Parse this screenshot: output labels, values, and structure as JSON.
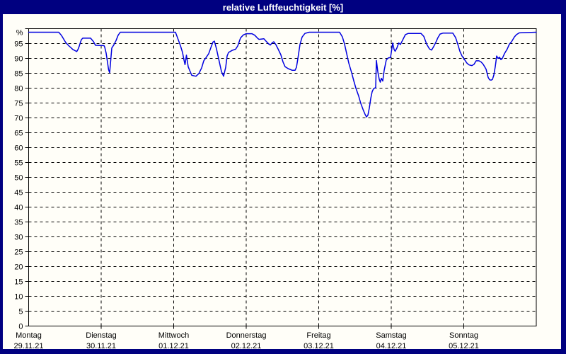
{
  "window": {
    "title": "relative Luftfeuchtigkeit [%]"
  },
  "colors": {
    "frame_background": "#000080",
    "panel_background": "#fffef8",
    "title_text": "#ffffff",
    "line": "#0000e0",
    "grid": "#000000",
    "label_text": "#000000"
  },
  "chart_data": {
    "type": "line",
    "title": "relative Luftfeuchtigkeit [%]",
    "unit_label": "%",
    "ylim": [
      0,
      100
    ],
    "y_tick_step": 5,
    "y_ticks": [
      0,
      5,
      10,
      15,
      20,
      25,
      30,
      35,
      40,
      45,
      50,
      55,
      60,
      65,
      70,
      75,
      80,
      85,
      90,
      95
    ],
    "xlim_days": [
      0,
      7
    ],
    "grid": "dashed",
    "legend": "none",
    "days": [
      {
        "name": "Montag",
        "date": "29.11.21"
      },
      {
        "name": "Dienstag",
        "date": "30.11.21"
      },
      {
        "name": "Mittwoch",
        "date": "01.12.21"
      },
      {
        "name": "Donnerstag",
        "date": "02.12.21"
      },
      {
        "name": "Freitag",
        "date": "03.12.21"
      },
      {
        "name": "Samstag",
        "date": "04.12.21"
      },
      {
        "name": "Sonntag",
        "date": "05.12.21"
      }
    ],
    "series": [
      {
        "name": "relative Luftfeuchtigkeit [%]",
        "color": "#0000e0",
        "points": [
          [
            0.0,
            98.8
          ],
          [
            0.415,
            98.8
          ],
          [
            0.454,
            97.7
          ],
          [
            0.483,
            96.5
          ],
          [
            0.512,
            95.3
          ],
          [
            0.551,
            94.3
          ],
          [
            0.58,
            93.7
          ],
          [
            0.61,
            93.0
          ],
          [
            0.649,
            92.5
          ],
          [
            0.663,
            92.3
          ],
          [
            0.678,
            92.9
          ],
          [
            0.698,
            94.1
          ],
          [
            0.712,
            95.3
          ],
          [
            0.727,
            96.3
          ],
          [
            0.746,
            96.8
          ],
          [
            0.854,
            96.8
          ],
          [
            0.893,
            95.7
          ],
          [
            0.922,
            94.4
          ],
          [
            1.039,
            94.3
          ],
          [
            1.049,
            93.8
          ],
          [
            1.068,
            91.8
          ],
          [
            1.088,
            88.6
          ],
          [
            1.102,
            86.2
          ],
          [
            1.117,
            85.2
          ],
          [
            1.146,
            93.5
          ],
          [
            1.176,
            94.6
          ],
          [
            1.205,
            96.0
          ],
          [
            1.234,
            97.8
          ],
          [
            1.263,
            98.8
          ],
          [
            2.024,
            98.8
          ],
          [
            2.054,
            96.9
          ],
          [
            2.093,
            94.3
          ],
          [
            2.122,
            92.0
          ],
          [
            2.141,
            89.5
          ],
          [
            2.156,
            87.9
          ],
          [
            2.176,
            91.1
          ],
          [
            2.2,
            87.2
          ],
          [
            2.249,
            84.3
          ],
          [
            2.307,
            84.0
          ],
          [
            2.346,
            84.9
          ],
          [
            2.385,
            86.8
          ],
          [
            2.415,
            89.2
          ],
          [
            2.444,
            90.2
          ],
          [
            2.483,
            91.6
          ],
          [
            2.512,
            93.6
          ],
          [
            2.541,
            95.5
          ],
          [
            2.561,
            95.8
          ],
          [
            2.59,
            93.2
          ],
          [
            2.62,
            89.8
          ],
          [
            2.659,
            85.6
          ],
          [
            2.688,
            84.0
          ],
          [
            2.717,
            87.0
          ],
          [
            2.737,
            90.8
          ],
          [
            2.756,
            92.0
          ],
          [
            2.805,
            92.7
          ],
          [
            2.854,
            93.1
          ],
          [
            2.883,
            94.2
          ],
          [
            2.922,
            96.9
          ],
          [
            2.961,
            97.9
          ],
          [
            3.0,
            98.3
          ],
          [
            3.078,
            98.3
          ],
          [
            3.117,
            97.8
          ],
          [
            3.156,
            96.8
          ],
          [
            3.176,
            96.4
          ],
          [
            3.244,
            96.6
          ],
          [
            3.273,
            95.8
          ],
          [
            3.312,
            94.8
          ],
          [
            3.332,
            94.5
          ],
          [
            3.361,
            95.3
          ],
          [
            3.38,
            95.6
          ],
          [
            3.41,
            94.6
          ],
          [
            3.439,
            93.2
          ],
          [
            3.478,
            91.2
          ],
          [
            3.507,
            88.8
          ],
          [
            3.537,
            87.2
          ],
          [
            3.576,
            86.6
          ],
          [
            3.605,
            86.3
          ],
          [
            3.634,
            86.0
          ],
          [
            3.673,
            86.0
          ],
          [
            3.693,
            87.0
          ],
          [
            3.712,
            89.9
          ],
          [
            3.741,
            94.7
          ],
          [
            3.771,
            97.2
          ],
          [
            3.81,
            98.4
          ],
          [
            3.868,
            98.8
          ],
          [
            4.288,
            98.8
          ],
          [
            4.327,
            97.2
          ],
          [
            4.356,
            94.8
          ],
          [
            4.385,
            91.6
          ],
          [
            4.415,
            88.4
          ],
          [
            4.454,
            85.2
          ],
          [
            4.483,
            82.5
          ],
          [
            4.512,
            80.0
          ],
          [
            4.551,
            77.3
          ],
          [
            4.58,
            74.9
          ],
          [
            4.61,
            72.9
          ],
          [
            4.639,
            71.2
          ],
          [
            4.659,
            70.3
          ],
          [
            4.678,
            70.9
          ],
          [
            4.698,
            73.3
          ],
          [
            4.717,
            76.5
          ],
          [
            4.737,
            78.8
          ],
          [
            4.756,
            79.8
          ],
          [
            4.785,
            80.2
          ],
          [
            4.795,
            89.3
          ],
          [
            4.815,
            85.5
          ],
          [
            4.834,
            83.0
          ],
          [
            4.849,
            82.0
          ],
          [
            4.863,
            83.3
          ],
          [
            4.883,
            82.4
          ],
          [
            4.902,
            86.0
          ],
          [
            4.932,
            89.5
          ],
          [
            4.961,
            90.2
          ],
          [
            4.99,
            90.3
          ],
          [
            5.01,
            93.5
          ],
          [
            5.02,
            95.2
          ],
          [
            5.039,
            93.0
          ],
          [
            5.054,
            92.4
          ],
          [
            5.078,
            93.5
          ],
          [
            5.102,
            95.2
          ],
          [
            5.127,
            94.7
          ],
          [
            5.166,
            96.6
          ],
          [
            5.195,
            98.0
          ],
          [
            5.234,
            98.4
          ],
          [
            5.41,
            98.4
          ],
          [
            5.449,
            97.4
          ],
          [
            5.488,
            94.8
          ],
          [
            5.527,
            93.2
          ],
          [
            5.556,
            92.8
          ],
          [
            5.585,
            94.0
          ],
          [
            5.615,
            95.4
          ],
          [
            5.644,
            97.0
          ],
          [
            5.673,
            98.2
          ],
          [
            5.712,
            98.5
          ],
          [
            5.849,
            98.5
          ],
          [
            5.888,
            97.0
          ],
          [
            5.917,
            94.8
          ],
          [
            5.946,
            92.4
          ],
          [
            5.976,
            90.8
          ],
          [
            6.005,
            89.8
          ],
          [
            6.044,
            88.4
          ],
          [
            6.073,
            87.8
          ],
          [
            6.112,
            87.6
          ],
          [
            6.141,
            88.0
          ],
          [
            6.171,
            89.2
          ],
          [
            6.21,
            89.2
          ],
          [
            6.239,
            88.8
          ],
          [
            6.268,
            88.0
          ],
          [
            6.307,
            86.4
          ],
          [
            6.337,
            83.6
          ],
          [
            6.356,
            82.8
          ],
          [
            6.376,
            82.7
          ],
          [
            6.395,
            82.9
          ],
          [
            6.415,
            84.4
          ],
          [
            6.434,
            87.2
          ],
          [
            6.454,
            90.8
          ],
          [
            6.473,
            90.0
          ],
          [
            6.493,
            90.4
          ],
          [
            6.512,
            89.6
          ],
          [
            6.532,
            90.0
          ],
          [
            6.561,
            91.6
          ],
          [
            6.6,
            93.2
          ],
          [
            6.629,
            94.8
          ],
          [
            6.659,
            95.6
          ],
          [
            6.698,
            97.2
          ],
          [
            6.727,
            98.0
          ],
          [
            6.766,
            98.6
          ],
          [
            7.0,
            98.8
          ]
        ]
      }
    ]
  }
}
